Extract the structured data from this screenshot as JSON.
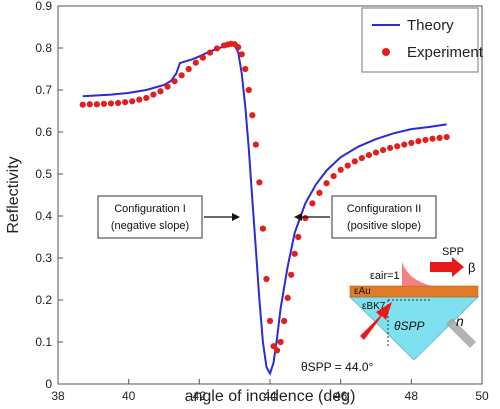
{
  "chart_data": {
    "type": "line",
    "xlabel": "angle of incidence (deg)",
    "ylabel": "Reflectivity",
    "xlim": [
      38,
      50
    ],
    "ylim": [
      0,
      0.9
    ],
    "xticks": [
      38,
      40,
      42,
      44,
      46,
      48,
      50
    ],
    "yticks": [
      0,
      0.1,
      0.2,
      0.3,
      0.4,
      0.5,
      0.6,
      0.7,
      0.8,
      0.9
    ],
    "grid": false,
    "legend": "top-right",
    "series": [
      {
        "name": "Theory",
        "style": "line",
        "color": "#2b2bd4",
        "x": [
          38.7,
          39.5,
          40.0,
          40.5,
          41.0,
          41.2,
          41.35,
          41.45,
          41.6,
          41.8,
          42.0,
          42.2,
          42.4,
          42.6,
          42.8,
          43.0,
          43.1,
          43.2,
          43.3,
          43.4,
          43.5,
          43.6,
          43.7,
          43.8,
          43.9,
          44.0,
          44.1,
          44.2,
          44.3,
          44.5,
          44.7,
          45.0,
          45.3,
          45.6,
          46.0,
          46.5,
          47.0,
          47.5,
          48.0,
          48.5,
          49.0
        ],
        "y": [
          0.685,
          0.689,
          0.693,
          0.7,
          0.712,
          0.722,
          0.74,
          0.764,
          0.768,
          0.773,
          0.78,
          0.788,
          0.795,
          0.801,
          0.806,
          0.806,
          0.79,
          0.74,
          0.66,
          0.56,
          0.44,
          0.32,
          0.2,
          0.1,
          0.04,
          0.025,
          0.05,
          0.11,
          0.18,
          0.28,
          0.36,
          0.43,
          0.475,
          0.508,
          0.54,
          0.565,
          0.583,
          0.597,
          0.607,
          0.612,
          0.618
        ]
      },
      {
        "name": "Experiment",
        "style": "scatter",
        "color": "#e0201e",
        "x": [
          38.7,
          38.9,
          39.1,
          39.3,
          39.5,
          39.7,
          39.9,
          40.1,
          40.3,
          40.5,
          40.7,
          40.9,
          41.1,
          41.3,
          41.5,
          41.7,
          41.9,
          42.1,
          42.3,
          42.5,
          42.7,
          42.8,
          42.9,
          43.0,
          43.1,
          43.2,
          43.3,
          43.4,
          43.5,
          43.6,
          43.7,
          43.8,
          43.9,
          44.0,
          44.1,
          44.2,
          44.3,
          44.4,
          44.5,
          44.6,
          44.7,
          44.8,
          45.0,
          45.2,
          45.4,
          45.6,
          45.8,
          46.0,
          46.2,
          46.4,
          46.6,
          46.8,
          47.0,
          47.2,
          47.4,
          47.6,
          47.8,
          48.0,
          48.2,
          48.4,
          48.6,
          48.8,
          49.0
        ],
        "y": [
          0.665,
          0.666,
          0.666,
          0.667,
          0.668,
          0.669,
          0.671,
          0.673,
          0.677,
          0.681,
          0.689,
          0.697,
          0.708,
          0.721,
          0.735,
          0.75,
          0.765,
          0.777,
          0.789,
          0.799,
          0.806,
          0.808,
          0.81,
          0.809,
          0.802,
          0.785,
          0.75,
          0.7,
          0.64,
          0.57,
          0.48,
          0.37,
          0.25,
          0.15,
          0.09,
          0.08,
          0.1,
          0.15,
          0.205,
          0.26,
          0.31,
          0.35,
          0.395,
          0.43,
          0.455,
          0.478,
          0.495,
          0.51,
          0.52,
          0.53,
          0.538,
          0.545,
          0.551,
          0.557,
          0.562,
          0.566,
          0.57,
          0.574,
          0.578,
          0.581,
          0.584,
          0.586,
          0.588
        ]
      }
    ],
    "annotations": {
      "config1": [
        "Configuration I",
        "(negative slope)"
      ],
      "config2": [
        "Configuration II",
        "(positive slope)"
      ],
      "theta_spp": "θSPP = 44.0°"
    },
    "inset": {
      "eps_air": "εair=1",
      "eps_au": "εAu",
      "eps_bk7": "εBK7",
      "spp": "SPP",
      "beta": "β",
      "theta": "θSPP",
      "n": "n"
    }
  }
}
